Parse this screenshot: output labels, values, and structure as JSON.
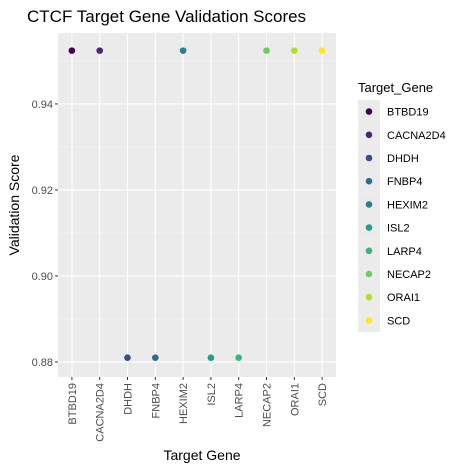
{
  "chart_data": {
    "type": "scatter",
    "title": "CTCF Target Gene Validation Scores",
    "xlabel": "Target Gene",
    "ylabel": "Validation Score",
    "categories": [
      "BTBD19",
      "CACNA2D4",
      "DHDH",
      "FNBP4",
      "HEXIM2",
      "ISL2",
      "LARP4",
      "NECAP2",
      "ORAI1",
      "SCD"
    ],
    "values": [
      0.9524,
      0.9524,
      0.881,
      0.881,
      0.9524,
      0.881,
      0.881,
      0.9524,
      0.9524,
      0.9524
    ],
    "ylim": [
      0.8765,
      0.9565
    ],
    "yticks": [
      0.88,
      0.9,
      0.92,
      0.94
    ],
    "ytick_labels": [
      "0.88",
      "0.90",
      "0.92",
      "0.94"
    ],
    "grid": true,
    "legend": {
      "title": "Target_Gene",
      "placement": "right",
      "entries": [
        "BTBD19",
        "CACNA2D4",
        "DHDH",
        "FNBP4",
        "HEXIM2",
        "ISL2",
        "LARP4",
        "NECAP2",
        "ORAI1",
        "SCD"
      ]
    },
    "colors": [
      "#440154",
      "#482878",
      "#3E4A89",
      "#31688E",
      "#26828E",
      "#1F9E89",
      "#35B779",
      "#6DCD59",
      "#B4DE2C",
      "#FDE725"
    ]
  }
}
